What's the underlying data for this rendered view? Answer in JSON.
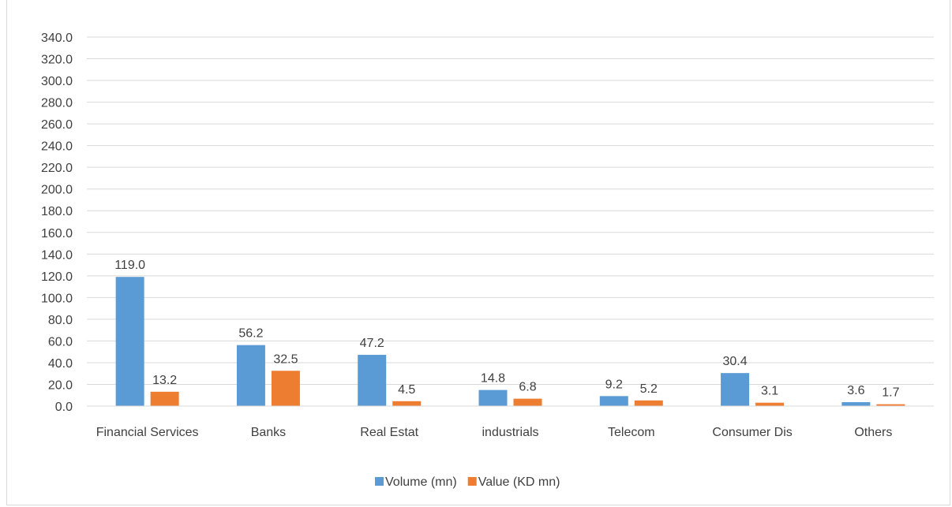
{
  "chart_data": {
    "type": "bar",
    "title": "",
    "xlabel": "",
    "ylabel": "",
    "ylim": [
      0,
      340
    ],
    "ytick_step": 20,
    "ytick_labels": [
      "0.0",
      "20.0",
      "40.0",
      "60.0",
      "80.0",
      "100.0",
      "120.0",
      "140.0",
      "160.0",
      "180.0",
      "200.0",
      "220.0",
      "240.0",
      "260.0",
      "280.0",
      "300.0",
      "320.0",
      "340.0"
    ],
    "grid": true,
    "legend_position": "bottom",
    "categories": [
      "Financial Services",
      "Banks",
      "Real Estat",
      "industrials",
      "Telecom",
      "Consumer Dis",
      "Others"
    ],
    "series": [
      {
        "name": "Volume (mn)",
        "color": "#5b9bd5",
        "values": [
          119.0,
          56.2,
          47.2,
          14.8,
          9.2,
          30.4,
          3.6
        ],
        "labels": [
          "119.0",
          "56.2",
          "47.2",
          "14.8",
          "9.2",
          "30.4",
          "3.6"
        ]
      },
      {
        "name": "Value (KD mn)",
        "color": "#ed7d31",
        "values": [
          13.2,
          32.5,
          4.5,
          6.8,
          5.2,
          3.1,
          1.7
        ],
        "labels": [
          "13.2",
          "32.5",
          "4.5",
          "6.8",
          "5.2",
          "3.1",
          "1.7"
        ]
      }
    ],
    "gridline_color": "#d9d9d9"
  }
}
